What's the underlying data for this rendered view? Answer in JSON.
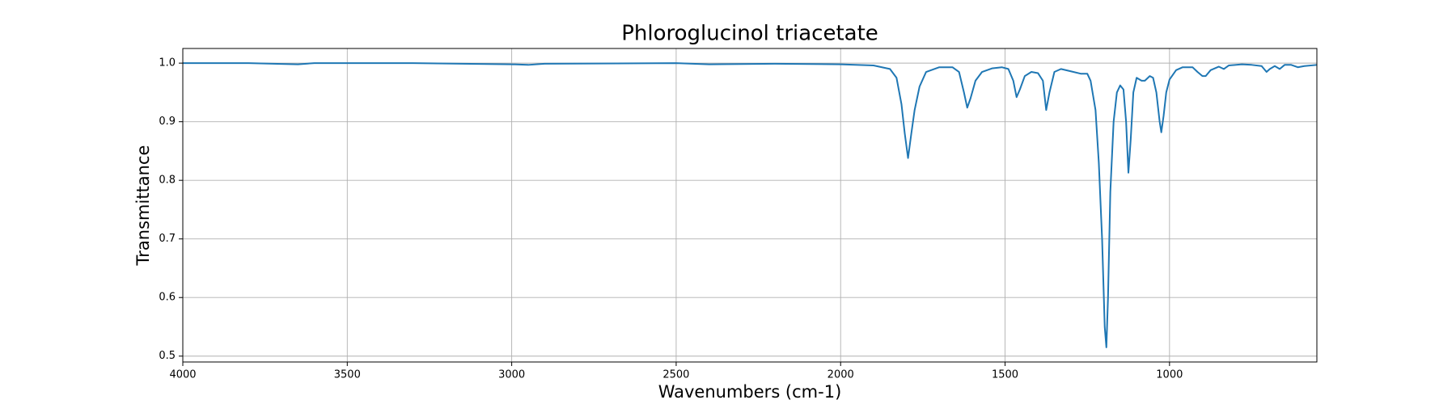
{
  "chart_data": {
    "type": "line",
    "title": "Phloroglucinol triacetate",
    "x_label": "Wavenumbers (cm-1)",
    "y_label": "Transmittance",
    "color": "#1f77b4",
    "grid": true,
    "x_reversed": true,
    "xlim": [
      4000,
      552
    ],
    "ylim": [
      0.49,
      1.025
    ],
    "xticks": [
      4000,
      3500,
      3000,
      2500,
      2000,
      1500,
      1000
    ],
    "yticks": [
      0.5,
      0.6,
      0.7,
      0.8,
      0.9,
      {
        "value": 1,
        "label": "1.0"
      }
    ],
    "x": [
      4000,
      3800,
      3650,
      3600,
      3300,
      3000,
      2950,
      2900,
      2500,
      2400,
      2200,
      2000,
      1900,
      1850,
      1830,
      1815,
      1805,
      1795,
      1785,
      1775,
      1760,
      1740,
      1700,
      1660,
      1640,
      1625,
      1615,
      1605,
      1590,
      1570,
      1540,
      1510,
      1490,
      1475,
      1465,
      1455,
      1440,
      1420,
      1400,
      1385,
      1375,
      1365,
      1350,
      1330,
      1300,
      1270,
      1250,
      1240,
      1225,
      1215,
      1205,
      1197,
      1192,
      1187,
      1180,
      1170,
      1160,
      1150,
      1140,
      1132,
      1125,
      1118,
      1110,
      1100,
      1085,
      1075,
      1060,
      1050,
      1040,
      1030,
      1025,
      1018,
      1010,
      1000,
      980,
      960,
      930,
      915,
      900,
      890,
      875,
      850,
      835,
      820,
      780,
      750,
      720,
      705,
      695,
      680,
      665,
      650,
      630,
      610,
      590,
      552
    ],
    "values": [
      1.0,
      1.0,
      0.998,
      1.0,
      1.0,
      0.998,
      0.997,
      0.999,
      1.0,
      0.998,
      0.999,
      0.998,
      0.996,
      0.99,
      0.975,
      0.93,
      0.88,
      0.838,
      0.88,
      0.92,
      0.96,
      0.985,
      0.993,
      0.993,
      0.985,
      0.95,
      0.924,
      0.94,
      0.97,
      0.985,
      0.991,
      0.993,
      0.99,
      0.97,
      0.942,
      0.955,
      0.978,
      0.985,
      0.983,
      0.97,
      0.92,
      0.95,
      0.985,
      0.99,
      0.986,
      0.982,
      0.982,
      0.97,
      0.92,
      0.83,
      0.7,
      0.55,
      0.515,
      0.6,
      0.78,
      0.9,
      0.95,
      0.962,
      0.955,
      0.9,
      0.813,
      0.87,
      0.95,
      0.975,
      0.97,
      0.97,
      0.978,
      0.975,
      0.95,
      0.9,
      0.882,
      0.91,
      0.95,
      0.972,
      0.988,
      0.993,
      0.993,
      0.985,
      0.978,
      0.978,
      0.988,
      0.994,
      0.99,
      0.996,
      0.998,
      0.997,
      0.995,
      0.985,
      0.99,
      0.995,
      0.99,
      0.997,
      0.997,
      0.993,
      0.995,
      0.997
    ]
  }
}
